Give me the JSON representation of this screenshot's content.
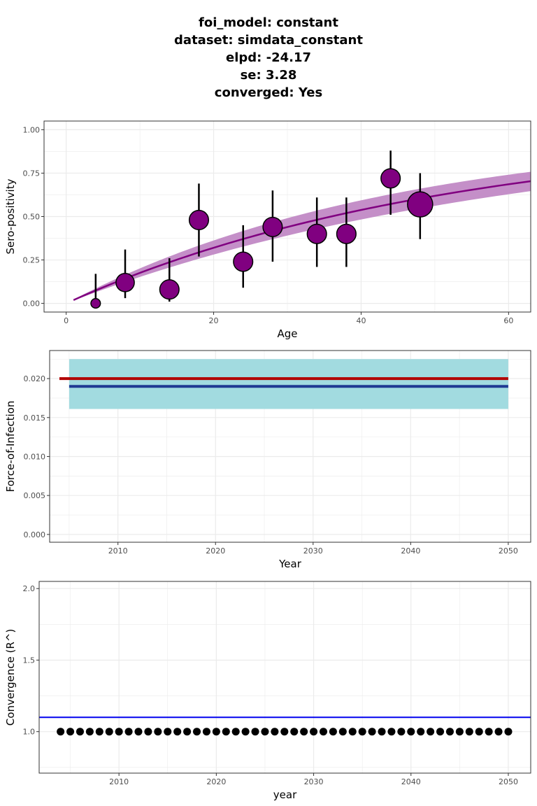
{
  "title": {
    "lines": [
      "foi_model: constant",
      "dataset: simdata_constant",
      "elpd: -24.17",
      "se: 3.28",
      "converged: Yes"
    ]
  },
  "colors": {
    "purple": "#800080",
    "ribbon_purple": "#c48fc8",
    "teal_band": "#a2dbe0",
    "red": "#b20000",
    "navy": "#1f3a93",
    "blue_line": "#0000ee",
    "grid": "#ebebeb"
  },
  "chart_data": [
    {
      "type": "scatter",
      "xlabel": "Age",
      "ylabel": "Sero-positivity",
      "xlim": [
        -3,
        63
      ],
      "ylim": [
        -0.05,
        1.05
      ],
      "x_ticks": [
        0,
        20,
        40,
        60
      ],
      "y_ticks": [
        0.0,
        0.25,
        0.5,
        0.75,
        1.0
      ],
      "x_tick_labels": [
        "0",
        "20",
        "40",
        "60"
      ],
      "y_tick_labels": [
        "0.00",
        "0.25",
        "0.50",
        "0.75",
        "1.00"
      ],
      "grid": true,
      "points": [
        {
          "x": 4,
          "y": 0.0,
          "lower": 0.0,
          "upper": 0.17,
          "size": 0.2
        },
        {
          "x": 8,
          "y": 0.12,
          "lower": 0.03,
          "upper": 0.31,
          "size": 0.65
        },
        {
          "x": 14,
          "y": 0.08,
          "lower": 0.01,
          "upper": 0.26,
          "size": 0.7
        },
        {
          "x": 18,
          "y": 0.48,
          "lower": 0.27,
          "upper": 0.69,
          "size": 0.7
        },
        {
          "x": 24,
          "y": 0.24,
          "lower": 0.09,
          "upper": 0.45,
          "size": 0.7
        },
        {
          "x": 28,
          "y": 0.44,
          "lower": 0.24,
          "upper": 0.65,
          "size": 0.7
        },
        {
          "x": 34,
          "y": 0.4,
          "lower": 0.21,
          "upper": 0.61,
          "size": 0.7
        },
        {
          "x": 38,
          "y": 0.4,
          "lower": 0.21,
          "upper": 0.61,
          "size": 0.7
        },
        {
          "x": 44,
          "y": 0.72,
          "lower": 0.51,
          "upper": 0.88,
          "size": 0.7
        },
        {
          "x": 48,
          "y": 0.57,
          "lower": 0.37,
          "upper": 0.75,
          "size": 1.0
        }
      ],
      "fit": {
        "foi": 0.0193,
        "foi_lower": 0.0165,
        "foi_upper": 0.0225,
        "x_start": 1,
        "x_end": 63
      }
    },
    {
      "type": "line",
      "xlabel": "Year",
      "ylabel": "Force-of-Infection",
      "xlim": [
        2003,
        2052.3
      ],
      "ylim": [
        -0.001,
        0.0236
      ],
      "x_ticks": [
        2010,
        2020,
        2030,
        2040,
        2050
      ],
      "y_ticks": [
        0.0,
        0.005,
        0.01,
        0.015,
        0.02
      ],
      "x_tick_labels": [
        "2010",
        "2020",
        "2030",
        "2040",
        "2050"
      ],
      "y_tick_labels": [
        "0.000",
        "0.005",
        "0.010",
        "0.015",
        "0.020"
      ],
      "grid": true,
      "band": {
        "x": [
          2005,
          2050
        ],
        "lower": 0.0161,
        "upper": 0.0225
      },
      "series": [
        {
          "x": [
            2004,
            2050
          ],
          "y": [
            0.02,
            0.02
          ],
          "color": "#b20000"
        },
        {
          "x": [
            2005,
            2050
          ],
          "y": [
            0.019,
            0.019
          ],
          "color": "#1f3a93"
        }
      ]
    },
    {
      "type": "scatter",
      "xlabel": "year",
      "ylabel": "Convergence (R^)",
      "xlim": [
        2001.8,
        2052.3
      ],
      "ylim": [
        0.71,
        2.05
      ],
      "x_ticks": [
        2010,
        2020,
        2030,
        2040,
        2050
      ],
      "y_ticks": [
        1.0,
        1.5,
        2.0
      ],
      "x_tick_labels": [
        "2010",
        "2020",
        "2030",
        "2040",
        "2050"
      ],
      "y_tick_labels": [
        "1.0",
        "1.5",
        "2.0"
      ],
      "grid": true,
      "hline": 1.1,
      "x_start": 2004,
      "x_end": 2050,
      "y_value": 1.0
    }
  ]
}
